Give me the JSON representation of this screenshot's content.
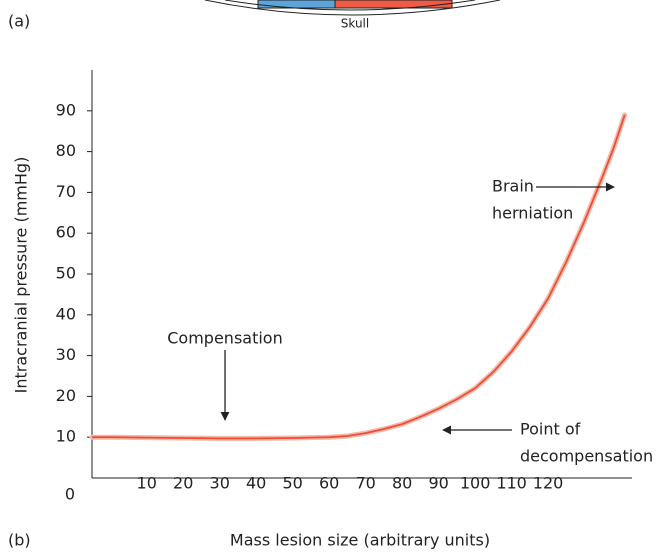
{
  "chart_data": {
    "type": "line",
    "panel_labels": [
      "(a)",
      "(b)"
    ],
    "top_figure_label": "Skull",
    "x_label": "Mass lesion size (arbitrary units)",
    "y_label": "Intracranial pressure (mmHg)",
    "x": [
      -5,
      0,
      10,
      20,
      30,
      40,
      50,
      60,
      65,
      70,
      75,
      80,
      85,
      90,
      95,
      100,
      105,
      110,
      115,
      120,
      125,
      130,
      135,
      138,
      141
    ],
    "series": [
      {
        "name": "Intracranial pressure",
        "color": "#e8503a",
        "values": [
          10,
          10,
          9.9,
          9.8,
          9.7,
          9.7,
          9.8,
          10,
          10.3,
          11,
          12,
          13.2,
          15,
          17,
          19.3,
          22,
          26,
          31,
          37,
          44,
          53,
          63,
          74,
          81,
          89
        ]
      }
    ],
    "xlim": [
      -5,
      143
    ],
    "ylim": [
      0,
      100
    ],
    "xticks": [
      10,
      20,
      30,
      40,
      50,
      60,
      70,
      80,
      90,
      100,
      110,
      120
    ],
    "yticks": [
      0,
      10,
      20,
      30,
      40,
      50,
      60,
      70,
      80,
      90
    ],
    "grid": false,
    "annotations": [
      {
        "lines": [
          "Compensation"
        ],
        "x": 32,
        "y": 10
      },
      {
        "lines": [
          "Brain",
          "herniation"
        ],
        "x": 133,
        "y": 70
      },
      {
        "lines": [
          "Point of",
          "decompensation"
        ],
        "x": 83,
        "y": 12
      }
    ]
  }
}
